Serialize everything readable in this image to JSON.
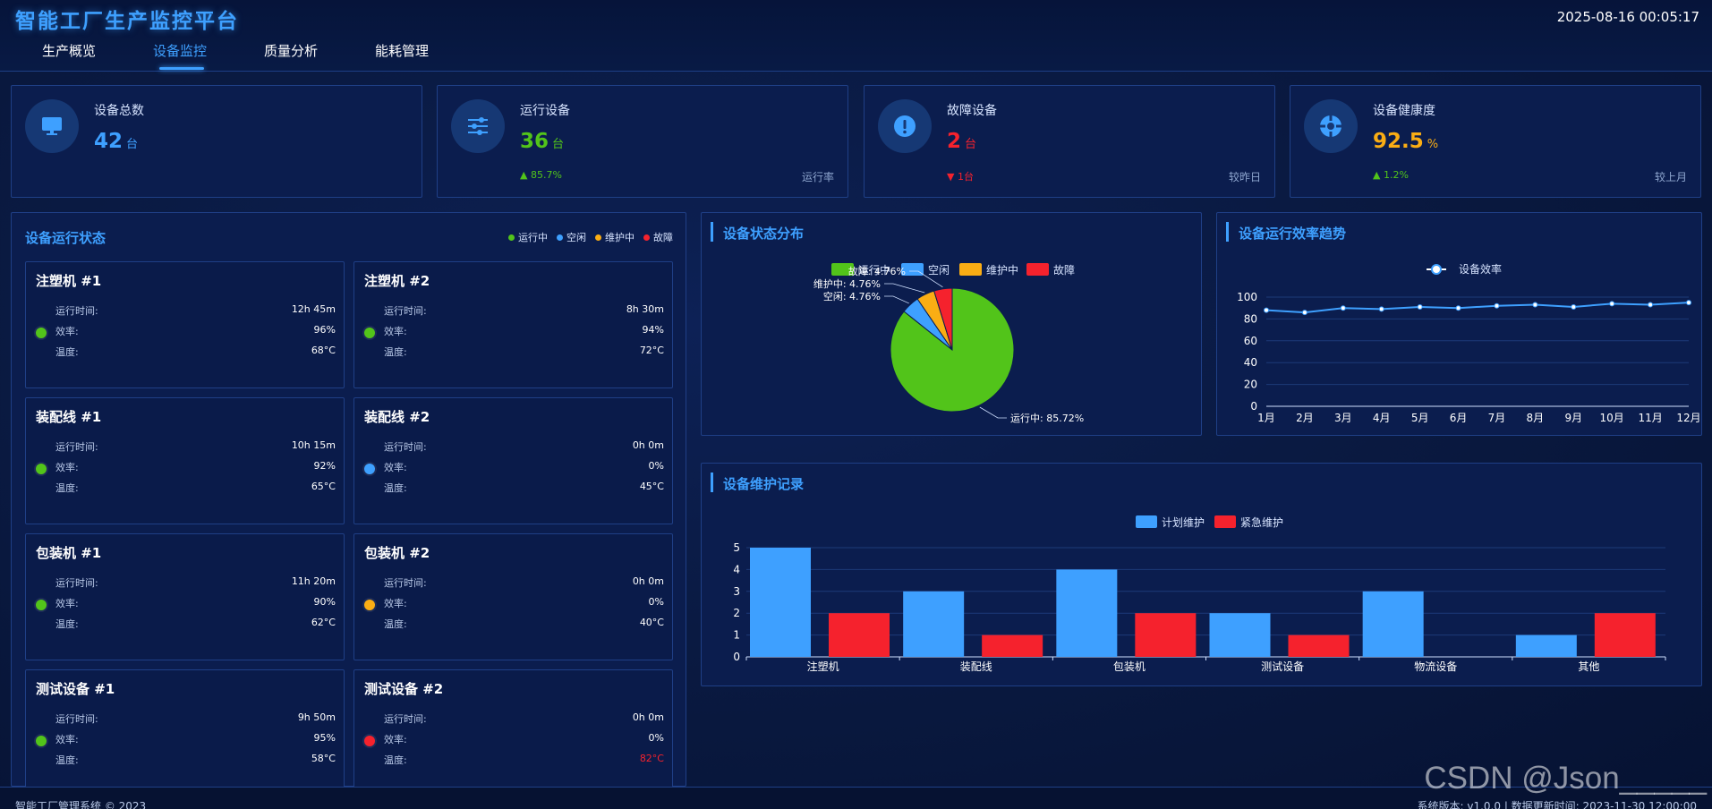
{
  "header": {
    "title": "智能工厂生产监控平台",
    "clock": "2025-08-16 00:05:17",
    "tabs": [
      {
        "label": "生产概览"
      },
      {
        "label": "设备监控"
      },
      {
        "label": "质量分析"
      },
      {
        "label": "能耗管理"
      }
    ],
    "active_tab": "设备监控"
  },
  "stats": [
    {
      "label": "设备总数",
      "value": "42",
      "unit": "台",
      "color": "#3ea0ff",
      "icon": "monitor-icon"
    },
    {
      "label": "运行设备",
      "value": "36",
      "unit": "台",
      "color": "#52c41a",
      "icon": "sliders-icon",
      "change": "85.7%",
      "change_dir": "up",
      "change_color": "#52c41a",
      "note": "运行率"
    },
    {
      "label": "故障设备",
      "value": "2",
      "unit": "台",
      "color": "#f5222d",
      "icon": "alert-icon",
      "change": "1台",
      "change_dir": "down",
      "change_color": "#f5222d",
      "note": "较昨日"
    },
    {
      "label": "设备健康度",
      "value": "92.5",
      "unit": "%",
      "color": "#faad14",
      "icon": "health-icon",
      "change": "1.2%",
      "change_dir": "up",
      "change_color": "#52c41a",
      "note": "较上月"
    }
  ],
  "device_panel": {
    "title": "设备运行状态",
    "legend": [
      {
        "label": "运行中",
        "color": "#52c41a"
      },
      {
        "label": "空闲",
        "color": "#3ea0ff"
      },
      {
        "label": "维护中",
        "color": "#faad14"
      },
      {
        "label": "故障",
        "color": "#f5222d"
      }
    ],
    "row_labels": {
      "runtime": "运行时间:",
      "efficiency": "效率:",
      "temperature": "温度:"
    },
    "devices": [
      {
        "name": "注塑机 #1",
        "runtime": "12h 45m",
        "efficiency": "96%",
        "temperature": "68°C",
        "status_color": "#52c41a",
        "temp_color": "#ffffff"
      },
      {
        "name": "注塑机 #2",
        "runtime": "8h 30m",
        "efficiency": "94%",
        "temperature": "72°C",
        "status_color": "#52c41a",
        "temp_color": "#ffffff"
      },
      {
        "name": "装配线 #1",
        "runtime": "10h 15m",
        "efficiency": "92%",
        "temperature": "65°C",
        "status_color": "#52c41a",
        "temp_color": "#ffffff"
      },
      {
        "name": "装配线 #2",
        "runtime": "0h 0m",
        "efficiency": "0%",
        "temperature": "45°C",
        "status_color": "#3ea0ff",
        "temp_color": "#ffffff"
      },
      {
        "name": "包装机 #1",
        "runtime": "11h 20m",
        "efficiency": "90%",
        "temperature": "62°C",
        "status_color": "#52c41a",
        "temp_color": "#ffffff"
      },
      {
        "name": "包装机 #2",
        "runtime": "0h 0m",
        "efficiency": "0%",
        "temperature": "40°C",
        "status_color": "#faad14",
        "temp_color": "#ffffff"
      },
      {
        "name": "测试设备 #1",
        "runtime": "9h 50m",
        "efficiency": "95%",
        "temperature": "58°C",
        "status_color": "#52c41a",
        "temp_color": "#ffffff"
      },
      {
        "name": "测试设备 #2",
        "runtime": "0h 0m",
        "efficiency": "0%",
        "temperature": "82°C",
        "status_color": "#f5222d",
        "temp_color": "#f5222d"
      }
    ]
  },
  "chart_data": [
    {
      "type": "pie",
      "title": "设备状态分布",
      "legend": [
        "运行中",
        "空闲",
        "维护中",
        "故障"
      ],
      "colors": [
        "#52c41a",
        "#3ea0ff",
        "#faad14",
        "#f5222d"
      ],
      "values": [
        85.72,
        4.76,
        4.76,
        4.76
      ],
      "labels": [
        "运行中: 85.72%",
        "空闲: 4.76%",
        "维护中: 4.76%",
        "故障: 4.76%"
      ],
      "legend_position": "top"
    },
    {
      "type": "line",
      "title": "设备运行效率趋势",
      "series": [
        {
          "name": "设备效率",
          "values": [
            88,
            86,
            90,
            89,
            91,
            90,
            92,
            93,
            91,
            94,
            93,
            95
          ]
        }
      ],
      "categories": [
        "1月",
        "2月",
        "3月",
        "4月",
        "5月",
        "6月",
        "7月",
        "8月",
        "9月",
        "10月",
        "11月",
        "12月"
      ],
      "ylim": [
        0,
        100
      ],
      "yticks": [
        0,
        20,
        40,
        60,
        80,
        100
      ],
      "color": "#3ea0ff",
      "grid": true,
      "legend_position": "top"
    },
    {
      "type": "bar",
      "title": "设备维护记录",
      "categories": [
        "注塑机",
        "装配线",
        "包装机",
        "测试设备",
        "物流设备",
        "其他"
      ],
      "series": [
        {
          "name": "计划维护",
          "values": [
            5,
            3,
            4,
            2,
            3,
            1
          ],
          "color": "#3ea0ff"
        },
        {
          "name": "紧急维护",
          "values": [
            2,
            1,
            2,
            1,
            0,
            2
          ],
          "color": "#f5222d"
        }
      ],
      "ylim": [
        0,
        5
      ],
      "yticks": [
        0,
        1,
        2,
        3,
        4,
        5
      ],
      "grid": true,
      "legend_position": "top"
    }
  ],
  "footer": {
    "left": "智能工厂管理系统 © 2023",
    "right": "系统版本: v1.0.0  |  数据更新时间: 2023-11-30 12:00:00"
  },
  "watermark": "CSDN @Json_____"
}
